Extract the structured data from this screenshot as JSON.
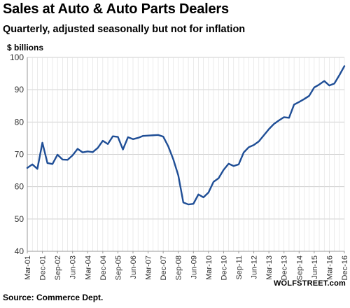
{
  "chart_data": {
    "type": "line",
    "title": "Sales at Auto & Auto Parts Dealers",
    "subtitle": "Quarterly, adjusted seasonally but not for inflation",
    "ylabel": "$ billions",
    "ylim": [
      40,
      100
    ],
    "yticks": [
      40,
      50,
      60,
      70,
      80,
      90,
      100
    ],
    "xtick_labels": [
      "Mar-01",
      "Dec-01",
      "Sep-02",
      "Jun-03",
      "Mar-04",
      "Dec-04",
      "Sep-05",
      "Jun-06",
      "Mar-07",
      "Dec-07",
      "Sep-08",
      "Jun-09",
      "Mar-10",
      "Dec-10",
      "Sep-11",
      "Jun-12",
      "Mar-13",
      "Dec-13",
      "Sep-14",
      "Jun-15",
      "Mar-16",
      "Dec-16"
    ],
    "grid": true,
    "series": [
      {
        "color": "#1f4e96",
        "x": [
          "Mar-01",
          "Jun-01",
          "Sep-01",
          "Dec-01",
          "Mar-02",
          "Jun-02",
          "Sep-02",
          "Dec-02",
          "Mar-03",
          "Jun-03",
          "Sep-03",
          "Dec-03",
          "Mar-04",
          "Jun-04",
          "Sep-04",
          "Dec-04",
          "Mar-05",
          "Jun-05",
          "Sep-05",
          "Dec-05",
          "Mar-06",
          "Jun-06",
          "Sep-06",
          "Dec-06",
          "Mar-07",
          "Jun-07",
          "Sep-07",
          "Dec-07",
          "Mar-08",
          "Jun-08",
          "Sep-08",
          "Dec-08",
          "Mar-09",
          "Jun-09",
          "Sep-09",
          "Dec-09",
          "Mar-10",
          "Jun-10",
          "Sep-10",
          "Dec-10",
          "Mar-11",
          "Jun-11",
          "Sep-11",
          "Dec-11",
          "Mar-12",
          "Jun-12",
          "Sep-12",
          "Dec-12",
          "Mar-13",
          "Jun-13",
          "Sep-13",
          "Dec-13",
          "Mar-14",
          "Jun-14",
          "Sep-14",
          "Dec-14",
          "Mar-15",
          "Jun-15",
          "Sep-15",
          "Dec-15",
          "Mar-16",
          "Jun-16",
          "Sep-16",
          "Dec-16"
        ],
        "values": [
          65.8,
          66.9,
          65.5,
          73.6,
          67.3,
          67.0,
          69.9,
          68.4,
          68.3,
          69.7,
          71.7,
          70.6,
          70.9,
          70.7,
          72.0,
          74.2,
          73.2,
          75.6,
          75.4,
          71.5,
          75.3,
          74.7,
          75.1,
          75.7,
          75.8,
          75.9,
          76.0,
          75.5,
          72.5,
          68.5,
          63.5,
          55.1,
          54.5,
          54.7,
          57.6,
          56.7,
          58.2,
          61.5,
          62.6,
          65.2,
          67.1,
          66.4,
          66.9,
          70.6,
          72.2,
          72.9,
          74.0,
          75.9,
          77.8,
          79.4,
          80.5,
          81.5,
          81.3,
          85.4,
          86.2,
          87.1,
          88.1,
          90.7,
          91.6,
          92.7,
          91.3,
          91.9,
          94.5,
          97.3
        ]
      }
    ]
  },
  "footer": {
    "source": "Source: Commerce Dept.",
    "brand": "WOLFSTREET.com"
  }
}
